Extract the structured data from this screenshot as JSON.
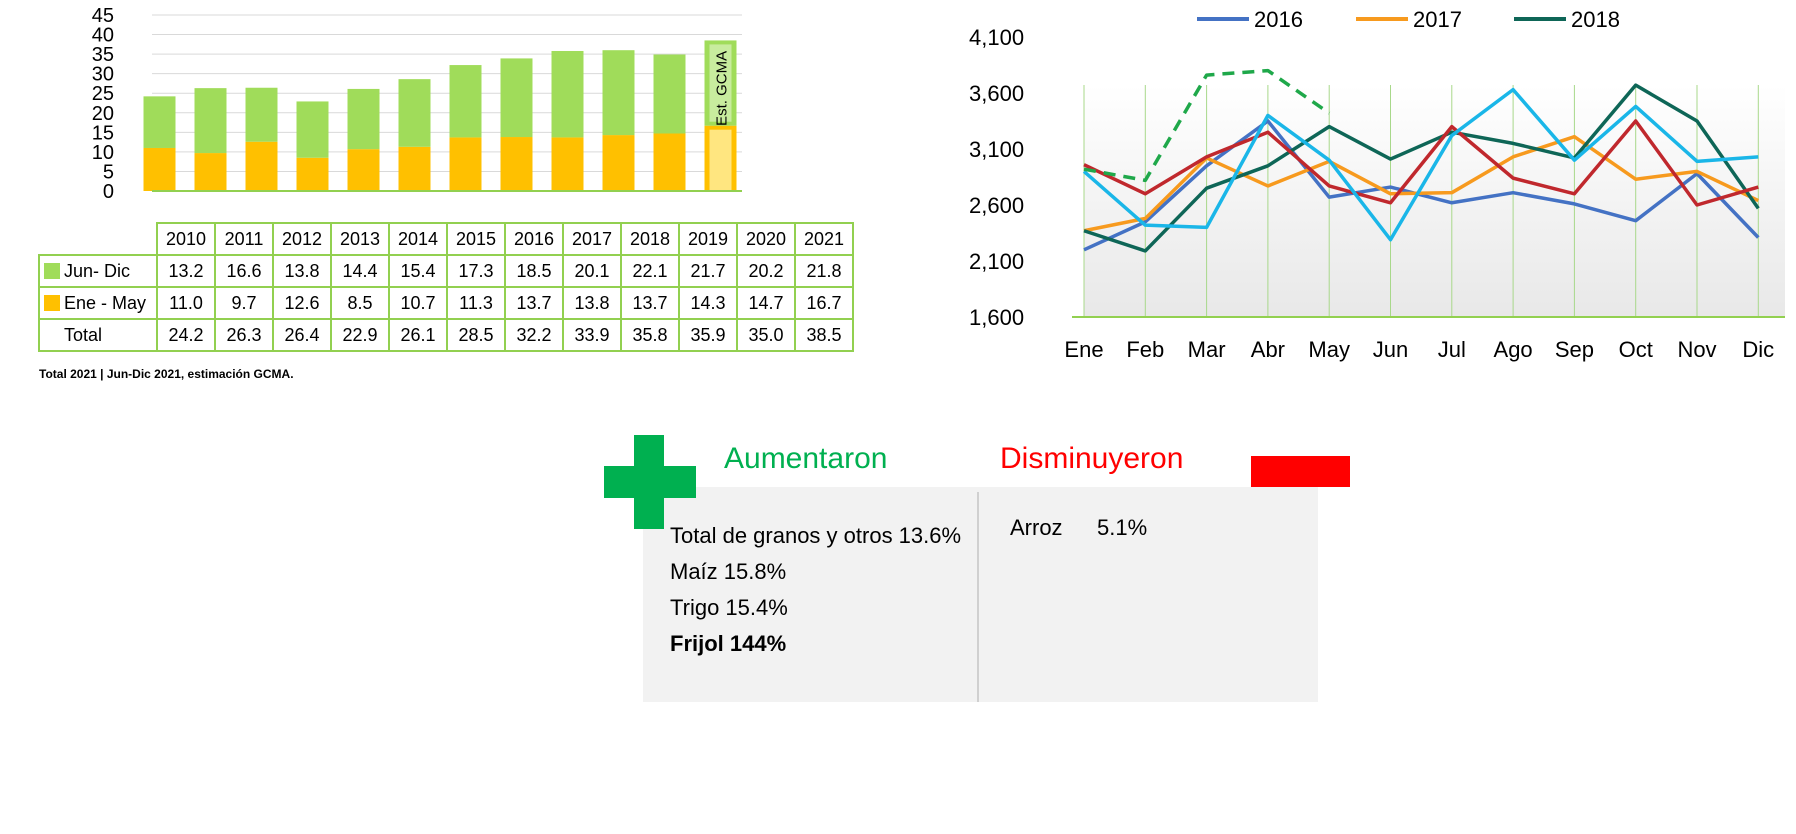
{
  "colors": {
    "jun_dic": "#a0dc5a",
    "ene_may": "#ffc000",
    "line_2016": "#4472c4",
    "line_2017": "#f79a1e",
    "line_2018": "#0e6657",
    "line_extra_red": "#c0282d",
    "line_extra_cyan": "#1ab6e8",
    "line_projection_green": "#1fa84a",
    "increase": "#00b050",
    "decrease": "#ff0000"
  },
  "chart_data": [
    {
      "type": "bar",
      "stacked": true,
      "categories": [
        "2010",
        "2011",
        "2012",
        "2013",
        "2014",
        "2015",
        "2016",
        "2017",
        "2018",
        "2019",
        "2020",
        "2021"
      ],
      "series": [
        {
          "name": "Jun- Dic",
          "values": [
            13.2,
            16.6,
            13.8,
            14.4,
            15.4,
            17.3,
            18.5,
            20.1,
            22.1,
            21.7,
            20.2,
            21.8
          ]
        },
        {
          "name": "Ene - May",
          "values": [
            11.0,
            9.7,
            12.6,
            8.5,
            10.7,
            11.3,
            13.7,
            13.8,
            13.7,
            14.3,
            14.7,
            16.7
          ]
        }
      ],
      "totals_label": "Total",
      "totals": [
        24.2,
        26.3,
        26.4,
        22.9,
        26.1,
        28.5,
        32.2,
        33.9,
        35.8,
        35.9,
        35.0,
        38.5
      ],
      "yticks": [
        0,
        5,
        10,
        15,
        20,
        25,
        30,
        35,
        40,
        45
      ],
      "ylim": [
        0,
        45
      ],
      "annotation": "Est. GCMA",
      "grid": true,
      "legend": "data-table"
    },
    {
      "type": "line",
      "categories": [
        "Ene",
        "Feb",
        "Mar",
        "Abr",
        "May",
        "Jun",
        "Jul",
        "Ago",
        "Sep",
        "Oct",
        "Nov",
        "Dic"
      ],
      "series": [
        {
          "name": "2016",
          "color": "#4472c4",
          "values": [
            2200,
            2450,
            2950,
            3350,
            2670,
            2760,
            2620,
            2710,
            2610,
            2460,
            2880,
            2310
          ]
        },
        {
          "name": "2017",
          "color": "#f79a1e",
          "values": [
            2370,
            2480,
            3020,
            2770,
            2990,
            2700,
            2710,
            3030,
            3210,
            2830,
            2900,
            2640
          ]
        },
        {
          "name": "2018",
          "color": "#0e6657",
          "values": [
            2370,
            2190,
            2750,
            2950,
            3300,
            3010,
            3250,
            3150,
            3020,
            3670,
            3350,
            2570
          ]
        },
        {
          "color": "#c0282d",
          "values": [
            2960,
            2700,
            3030,
            3250,
            2770,
            2620,
            3300,
            2840,
            2700,
            3350,
            2600,
            2760
          ]
        },
        {
          "color": "#1ab6e8",
          "values": [
            2900,
            2420,
            2400,
            3400,
            3000,
            2290,
            3220,
            3630,
            3000,
            3480,
            2990,
            3030
          ]
        },
        {
          "color": "#1fa84a",
          "dashed": true,
          "values": [
            2920,
            2820,
            3760,
            3800,
            3420,
            null,
            null,
            null,
            null,
            null,
            null,
            null
          ]
        }
      ],
      "yticks": [
        1600,
        2100,
        2600,
        3100,
        3600,
        4100
      ],
      "ytick_labels": [
        "1,600",
        "2,100",
        "2,600",
        "3,100",
        "3,600",
        "4,100"
      ],
      "ylim": [
        1600,
        4100
      ],
      "legend": "top"
    }
  ],
  "footnote": "Total 2021 | Jun-Dic 2021, estimación GCMA.",
  "summary": {
    "increased_title": "Aumentaron",
    "decreased_title": "Disminuyeron",
    "increased": [
      {
        "text": "Total de granos y otros 13.6%",
        "bold": false
      },
      {
        "text": "Maíz 15.8%",
        "bold": false
      },
      {
        "text": "Trigo 15.4%",
        "bold": false
      },
      {
        "text": "Frijol 144%",
        "bold": true
      }
    ],
    "decreased": [
      {
        "label": "Arroz",
        "value": "5.1%"
      }
    ]
  }
}
